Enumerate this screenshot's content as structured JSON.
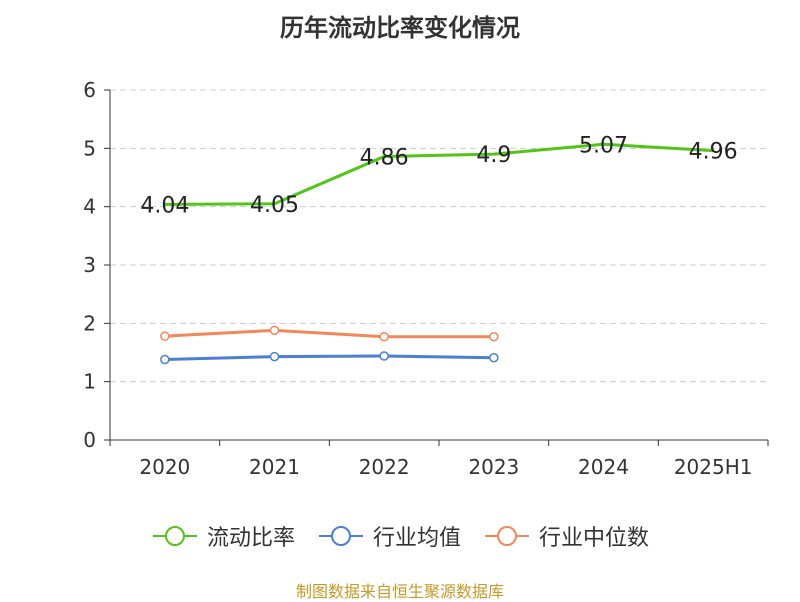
{
  "title": "历年流动比率变化情况",
  "source": "制图数据来自恒生聚源数据库",
  "chart_data": {
    "type": "line",
    "categories": [
      "2020",
      "2021",
      "2022",
      "2023",
      "2024",
      "2025H1"
    ],
    "ylim": [
      0,
      6
    ],
    "yticks": [
      0,
      1,
      2,
      3,
      4,
      5,
      6
    ],
    "grid": true,
    "legend_position": "bottom",
    "series": [
      {
        "name": "流动比率",
        "color": "#52c41a",
        "values": [
          4.04,
          4.05,
          4.86,
          4.9,
          5.07,
          4.96
        ],
        "labels": [
          "4.04",
          "4.05",
          "4.86",
          "4.9",
          "5.07",
          "4.96"
        ],
        "show_labels": true,
        "markers": false
      },
      {
        "name": "行业均值",
        "color": "#4a7fd6",
        "values": [
          1.38,
          1.43,
          1.44,
          1.41,
          null,
          null
        ],
        "show_labels": false,
        "markers": true
      },
      {
        "name": "行业中位数",
        "color": "#f4875a",
        "values": [
          1.78,
          1.88,
          1.77,
          1.77,
          null,
          null
        ],
        "show_labels": false,
        "markers": true
      }
    ]
  }
}
